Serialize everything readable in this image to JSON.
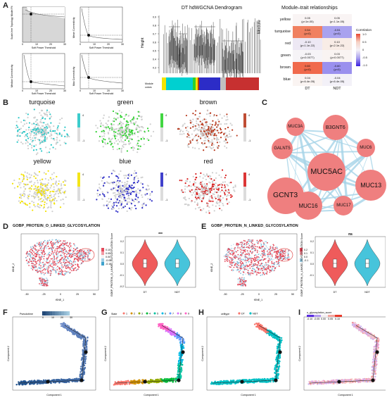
{
  "panels": {
    "A": "A",
    "B": "B",
    "C": "C",
    "D": "D",
    "E": "E",
    "F": "F",
    "G": "G",
    "H": "H",
    "I": "I"
  },
  "panelA": {
    "plot1_ylabel": "Scale-free Topology Model Fit",
    "plot2_ylabel": "Mean Connectivity",
    "plot3_ylabel": "Median Connectivity",
    "plot4_ylabel": "Max Connectivity",
    "xlabel": "Soft Power Threshold",
    "x_ticks": [
      "0",
      "10",
      "20",
      "30"
    ],
    "dendro_title": "DT hdWGCNA Dendrogram",
    "dendro_ylabel": "Height",
    "dendro_yticks": [
      "0.9",
      "0.8",
      "0.7",
      "0.6",
      "0.5",
      "0.4",
      "0.3"
    ],
    "module_colors_label": "Module\ncolors",
    "module_colors_bar": [
      "#f2e400",
      "#00d0d0",
      "#2ed12e",
      "#f3e200",
      "#bc3c00",
      "#2c2cc7",
      "#c0c0c0",
      "#c73030"
    ]
  },
  "heatmap": {
    "title": "Module–trait relationships",
    "ylabel": "Module",
    "rows": [
      {
        "module": "yellow",
        "cells": [
          {
            "v": "0.05",
            "p": "(p<1e-05)",
            "c": "#f9f4f4"
          },
          {
            "v": "0.05",
            "p": "(p<1.1e-05)",
            "c": "#f9f4f4"
          }
        ]
      },
      {
        "module": "turquoise",
        "cells": [
          {
            "v": "0.54",
            "p": "(p<0)",
            "c": "#f08060"
          },
          {
            "v": "-0.51",
            "p": "(p<0)",
            "c": "#a9a2ef"
          }
        ]
      },
      {
        "module": "red",
        "cells": [
          {
            "v": "-0.10",
            "p": "(p<1.1e-22)",
            "c": "#ede8f4"
          },
          {
            "v": "0.10",
            "p": "(p<2.1e-22)",
            "c": "#f8ece6"
          }
        ]
      },
      {
        "module": "green",
        "cells": [
          {
            "v": "-0.03",
            "p": "(p<0.0077)",
            "c": "#f6f4f7"
          },
          {
            "v": "0.03",
            "p": "(p<0.0077)",
            "c": "#f9f4f2"
          }
        ]
      },
      {
        "module": "brown",
        "cells": [
          {
            "v": "0.60",
            "p": "(p<0)",
            "c": "#f06a4c"
          },
          {
            "v": "-0.60",
            "p": "(p<0)",
            "c": "#9a90ee"
          }
        ]
      },
      {
        "module": "blue",
        "cells": [
          {
            "v": "0.04",
            "p": "(p<6.4e-05)",
            "c": "#faf4f2"
          },
          {
            "v": "-0.04",
            "p": "(p<6.4e-05)",
            "c": "#f3f1f8"
          }
        ]
      }
    ],
    "columns": [
      "DT",
      "NDT"
    ],
    "legend_title": "Correlation",
    "legend_ticks": [
      "1.0",
      "0.5",
      "0",
      "-0.5",
      "-1.0"
    ]
  },
  "panelB": {
    "titles": [
      "turquoise",
      "green",
      "brown",
      "yellow",
      "blue",
      "red"
    ],
    "colors": [
      "#27c7c7",
      "#2ed12e",
      "#b83a1e",
      "#f3e200",
      "#2c2cc7",
      "#d82020"
    ],
    "legend_hi": "4",
    "legend_lo": "-1"
  },
  "network": {
    "nodes": [
      {
        "label": "MUC3A"
      },
      {
        "label": "B3GNT6"
      },
      {
        "label": "GALNT5"
      },
      {
        "label": "MUC6"
      },
      {
        "label": "MUC5AC"
      },
      {
        "label": "GCNT3"
      },
      {
        "label": "MUC13"
      },
      {
        "label": "MUC16"
      },
      {
        "label": "MUC17"
      }
    ]
  },
  "panelD": {
    "title": "GOBP_PROTEIN_O_LINKED_GLYCOSYLATION",
    "xlabel": "tSNE_1",
    "ylabel": "tSNE_2",
    "x_ticks": [
      "-50",
      "-25",
      "0",
      "25",
      "50"
    ],
    "legend_vals": [
      "0.10",
      "0.05",
      "0.00",
      "-0.05",
      "-0.10"
    ],
    "violin_ylabel": "GOBP_PROTEIN_O_LINKED_GLYCOSYLATION Score",
    "violin_yticks": [
      "0.2",
      "0.1",
      "0.0",
      "-0.1",
      "-0.2"
    ],
    "groups": [
      "DT",
      "NDT"
    ],
    "sig": "***"
  },
  "panelE": {
    "title": "GOBP_PROTEIN_N_LINKED_GLYCOSYLATION",
    "xlabel": "tSNE_1",
    "ylabel": "tSNE_2",
    "x_ticks": [
      "-50",
      "-25",
      "0",
      "25",
      "50"
    ],
    "legend_vals": [
      "0.2",
      "0.1",
      "0.0",
      "-0.1"
    ],
    "violin_ylabel": "GOBP_PROTEIN_N_LINKED_GLYCOSYLATION Score",
    "violin_yticks": [
      "0.2",
      "0.1",
      "0.0",
      "-0.1"
    ],
    "groups": [
      "DT",
      "NDT"
    ],
    "sig": "ns"
  },
  "panelF": {
    "legend_title": "Pseudotime",
    "legend_ticks": [
      "0",
      "10",
      "20",
      "30"
    ],
    "xlabel": "Component 1",
    "ylabel": "Component 2"
  },
  "panelG": {
    "legend_title": "State",
    "states": [
      "1",
      "2",
      "3",
      "4",
      "5",
      "6",
      "7",
      "8",
      "9"
    ],
    "state_colors": [
      "#f8766d",
      "#d39200",
      "#93aa00",
      "#00ba38",
      "#00c19f",
      "#00b9e3",
      "#619cff",
      "#db72fb",
      "#ff61c3"
    ],
    "xlabel": "Component 1",
    "ylabel": "Component 2"
  },
  "panelH": {
    "legend_title": "celltype",
    "types": [
      "DT",
      "NDT"
    ],
    "type_colors": [
      "#f8766d",
      "#00bfc4"
    ],
    "xlabel": "Component 1",
    "ylabel": "Component 2"
  },
  "panelI": {
    "legend_title": "o_glycosylation_score",
    "legend_ticks": [
      "-0.10",
      "-0.05",
      "0.00",
      "0.05",
      "0.10"
    ],
    "xlabel": "Component 1",
    "ylabel": "Component 2"
  }
}
